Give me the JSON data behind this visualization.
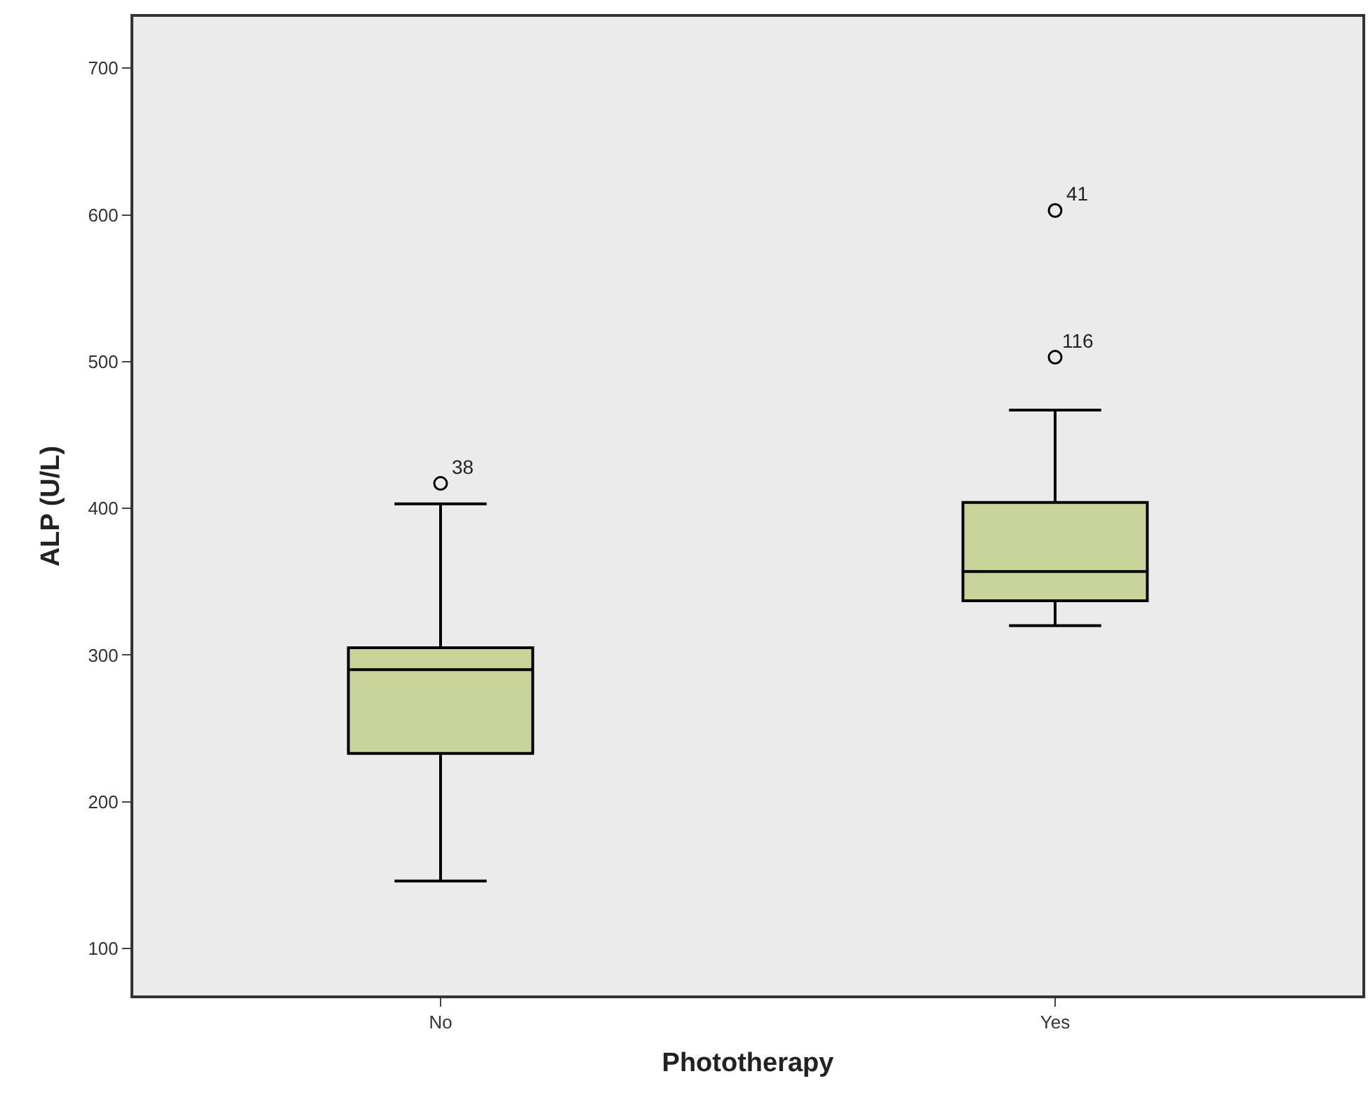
{
  "chart_data": {
    "type": "box",
    "xlabel": "Phototherapy",
    "ylabel": "ALP (U/L)",
    "categories": [
      "No",
      "Yes"
    ],
    "boxes": [
      {
        "low": 146,
        "q1": 233,
        "median": 290,
        "q3": 305,
        "high": 403,
        "outliers": [
          417
        ]
      },
      {
        "low": 320,
        "q1": 337,
        "median": 357,
        "q3": 404,
        "high": 467,
        "outliers": [
          503,
          603
        ]
      }
    ],
    "color": "#c9d49b",
    "ylim": [
      68,
      735
    ],
    "yticks": [
      100,
      200,
      300,
      400,
      500,
      600,
      700
    ],
    "annotations": [
      "38",
      "116",
      "41"
    ],
    "grid": false
  }
}
